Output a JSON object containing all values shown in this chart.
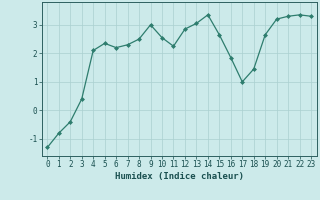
{
  "x": [
    0,
    1,
    2,
    3,
    4,
    5,
    6,
    7,
    8,
    9,
    10,
    11,
    12,
    13,
    14,
    15,
    16,
    17,
    18,
    19,
    20,
    21,
    22,
    23
  ],
  "y": [
    -1.3,
    -0.8,
    -0.4,
    0.4,
    2.1,
    2.35,
    2.2,
    2.3,
    2.5,
    3.0,
    2.55,
    2.25,
    2.85,
    3.05,
    3.35,
    2.65,
    1.85,
    1.0,
    1.45,
    2.65,
    3.2,
    3.3,
    3.35,
    3.3
  ],
  "line_color": "#2e7d6e",
  "marker": "D",
  "marker_size": 2.0,
  "bg_color": "#cceaea",
  "grid_color": "#aad0d0",
  "xlabel": "Humidex (Indice chaleur)",
  "ylim": [
    -1.6,
    3.8
  ],
  "xlim": [
    -0.5,
    23.5
  ],
  "yticks": [
    -1,
    0,
    1,
    2,
    3
  ],
  "xticks": [
    0,
    1,
    2,
    3,
    4,
    5,
    6,
    7,
    8,
    9,
    10,
    11,
    12,
    13,
    14,
    15,
    16,
    17,
    18,
    19,
    20,
    21,
    22,
    23
  ],
  "tick_fontsize": 5.5,
  "xlabel_fontsize": 6.5,
  "spine_color": "#2e6060",
  "tick_color": "#1a5050"
}
